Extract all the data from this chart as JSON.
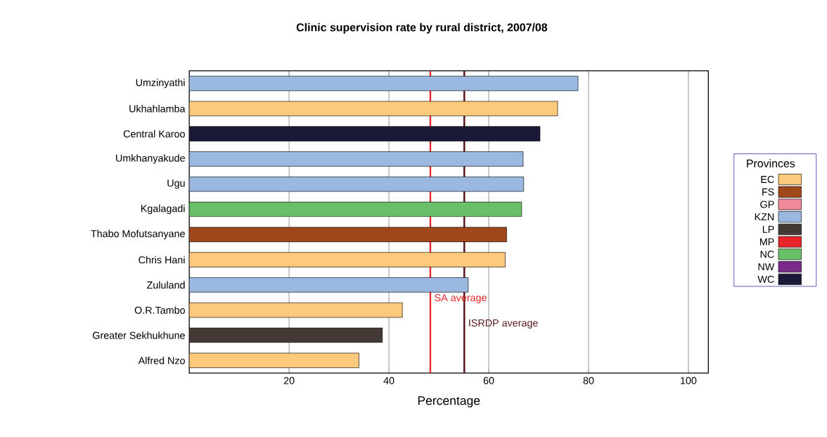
{
  "chart_data": {
    "type": "bar",
    "orientation": "horizontal",
    "title": "Clinic supervision rate by rural district, 2007/08",
    "xlabel": "Percentage",
    "categories": [
      "Umzinyathi",
      "Ukhahlamba",
      "Central Karoo",
      "Umkhanyakude",
      "Ugu",
      "Kgalagadi",
      "Thabo Mofutsanyane",
      "Chris Hani",
      "Zululand",
      "O.R.Tambo",
      "Greater Sekhukhune",
      "Alfred Nzo"
    ],
    "series": [
      {
        "name": "EC",
        "color": "#fdc97a",
        "values": [
          null,
          73.8,
          null,
          null,
          null,
          null,
          null,
          63.3,
          null,
          42.7,
          null,
          34.0
        ]
      },
      {
        "name": "FS",
        "color": "#a0481c",
        "values": [
          null,
          null,
          null,
          null,
          null,
          null,
          63.6,
          null,
          null,
          null,
          null,
          null
        ]
      },
      {
        "name": "GP",
        "color": "#f08a9a",
        "values": [
          null,
          null,
          null,
          null,
          null,
          null,
          null,
          null,
          null,
          null,
          null,
          null
        ]
      },
      {
        "name": "KZN",
        "color": "#9ab8e0",
        "values": [
          77.9,
          null,
          null,
          66.9,
          67.0,
          null,
          null,
          null,
          55.9,
          null,
          null,
          null
        ]
      },
      {
        "name": "LP",
        "color": "#433a36",
        "values": [
          null,
          null,
          null,
          null,
          null,
          null,
          null,
          null,
          null,
          null,
          38.7,
          null
        ]
      },
      {
        "name": "MP",
        "color": "#e8262a",
        "values": [
          null,
          null,
          null,
          null,
          null,
          null,
          null,
          null,
          null,
          null,
          null,
          null
        ]
      },
      {
        "name": "NC",
        "color": "#6abf69",
        "values": [
          null,
          null,
          null,
          null,
          null,
          66.6,
          null,
          null,
          null,
          null,
          null,
          null
        ]
      },
      {
        "name": "NW",
        "color": "#7a2a8a",
        "values": [
          null,
          null,
          null,
          null,
          null,
          null,
          null,
          null,
          null,
          null,
          null,
          null
        ]
      },
      {
        "name": "WC",
        "color": "#1a1a38",
        "values": [
          null,
          null,
          70.3,
          null,
          null,
          null,
          null,
          null,
          null,
          null,
          null,
          null
        ]
      }
    ],
    "xlim": [
      0,
      104
    ],
    "xticks": [
      20,
      40,
      60,
      80,
      100
    ],
    "grid": "x",
    "legend": "right",
    "legend_title": "Provinces",
    "ref_lines": [
      {
        "axis": "x",
        "value": 48.3,
        "label": "SA average",
        "color": "#e8262a"
      },
      {
        "axis": "x",
        "value": 55.1,
        "label": "ISRDP average",
        "color": "#5a1a1a"
      }
    ]
  }
}
